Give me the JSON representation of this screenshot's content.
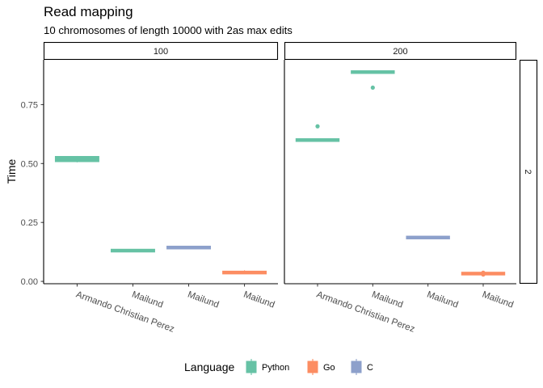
{
  "chart_data": {
    "type": "box",
    "title": "Read mapping",
    "subtitle": "10 chromosomes of length 10000 with 2as max edits",
    "ylabel": "Time",
    "xlabel": "",
    "ylim": [
      -0.01,
      0.94
    ],
    "yticks": [
      0.0,
      0.25,
      0.5,
      0.75
    ],
    "ytick_labels": [
      "0.00",
      "0.25",
      "0.50",
      "0.75"
    ],
    "categories": [
      "Armando Christian Perez",
      "Mailund",
      "Mailund",
      "Mailund"
    ],
    "facet_columns": [
      "100",
      "200"
    ],
    "facet_row": "2",
    "grid": false,
    "legend": {
      "title": "Language",
      "position": "bottom",
      "entries": [
        {
          "name": "Python",
          "color": "#66c2a5"
        },
        {
          "name": "Go",
          "color": "#fc8d62"
        },
        {
          "name": "C",
          "color": "#8da0cb"
        }
      ]
    },
    "panels": [
      {
        "column": "100",
        "boxes": [
          {
            "category": "Armando Christian Perez",
            "language": "Python",
            "min": 0.505,
            "q1": 0.508,
            "median": 0.518,
            "q3": 0.53,
            "max": 0.532,
            "outliers": []
          },
          {
            "category": "Mailund",
            "language": "Python",
            "min": 0.128,
            "q1": 0.129,
            "median": 0.131,
            "q3": 0.132,
            "max": 0.133,
            "outliers": []
          },
          {
            "category": "Mailund",
            "language": "C",
            "min": 0.141,
            "q1": 0.142,
            "median": 0.144,
            "q3": 0.145,
            "max": 0.146,
            "outliers": []
          },
          {
            "category": "Mailund",
            "language": "Go",
            "min": 0.032,
            "q1": 0.033,
            "median": 0.037,
            "q3": 0.042,
            "max": 0.047,
            "outliers": []
          }
        ]
      },
      {
        "column": "200",
        "boxes": [
          {
            "category": "Armando Christian Perez",
            "language": "Python",
            "min": 0.598,
            "q1": 0.598,
            "median": 0.6,
            "q3": 0.601,
            "max": 0.601,
            "outliers": [
              0.658
            ]
          },
          {
            "category": "Mailund",
            "language": "Python",
            "min": 0.883,
            "q1": 0.885,
            "median": 0.888,
            "q3": 0.891,
            "max": 0.895,
            "outliers": [
              0.822
            ]
          },
          {
            "category": "Mailund",
            "language": "C",
            "min": 0.184,
            "q1": 0.185,
            "median": 0.186,
            "q3": 0.187,
            "max": 0.188,
            "outliers": []
          },
          {
            "category": "Mailund",
            "language": "Go",
            "min": 0.031,
            "q1": 0.032,
            "median": 0.033,
            "q3": 0.034,
            "max": 0.036,
            "outliers": [
              0.029,
              0.037
            ]
          }
        ]
      }
    ]
  }
}
